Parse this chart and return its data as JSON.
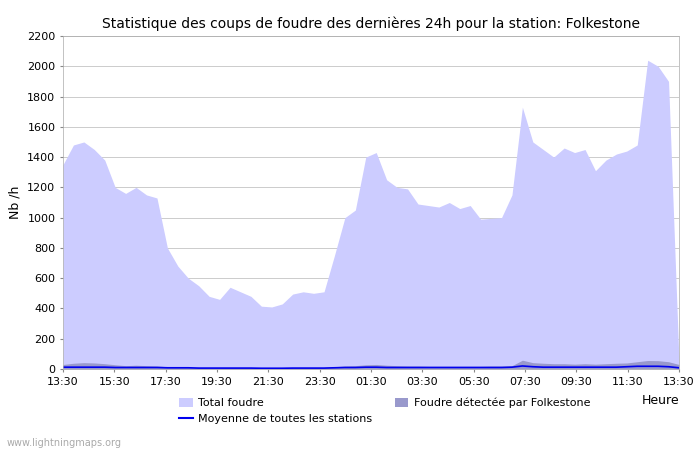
{
  "title": "Statistique des coups de foudre des dernières 24h pour la station: Folkestone",
  "ylabel": "Nb /h",
  "xlabel": "Heure",
  "ylim": [
    0,
    2200
  ],
  "yticks": [
    0,
    200,
    400,
    600,
    800,
    1000,
    1200,
    1400,
    1600,
    1800,
    2000,
    2200
  ],
  "xtick_labels": [
    "13:30",
    "15:30",
    "17:30",
    "19:30",
    "21:30",
    "23:30",
    "01:30",
    "03:30",
    "05:30",
    "07:30",
    "09:30",
    "11:30",
    "13:30"
  ],
  "bg_color": "#ffffff",
  "plot_bg_color": "#ffffff",
  "grid_color": "#cccccc",
  "fill_total_color": "#ccccff",
  "fill_station_color": "#9999cc",
  "mean_line_color": "#0000ee",
  "watermark": "www.lightningmaps.org",
  "total_foudre": [
    1350,
    1480,
    1500,
    1450,
    1380,
    1200,
    1160,
    1200,
    1150,
    1130,
    800,
    680,
    600,
    550,
    480,
    460,
    540,
    510,
    480,
    415,
    410,
    430,
    495,
    510,
    500,
    510,
    750,
    1000,
    1050,
    1400,
    1430,
    1250,
    1200,
    1190,
    1090,
    1080,
    1070,
    1100,
    1060,
    1080,
    990,
    995,
    1000,
    1150,
    1730,
    1500,
    1450,
    1400,
    1460,
    1430,
    1450,
    1310,
    1380,
    1420,
    1440,
    1480,
    2040,
    2000,
    1900,
    50
  ],
  "station_foudre": [
    30,
    38,
    42,
    40,
    35,
    28,
    22,
    25,
    22,
    20,
    15,
    12,
    10,
    10,
    8,
    8,
    10,
    10,
    10,
    8,
    8,
    8,
    10,
    10,
    10,
    10,
    15,
    20,
    22,
    28,
    30,
    25,
    22,
    20,
    20,
    18,
    18,
    18,
    18,
    18,
    18,
    20,
    20,
    22,
    58,
    42,
    38,
    35,
    35,
    32,
    35,
    32,
    35,
    38,
    40,
    48,
    56,
    55,
    48,
    30
  ],
  "mean_line": [
    12,
    12,
    12,
    12,
    12,
    10,
    10,
    10,
    10,
    10,
    8,
    8,
    8,
    6,
    6,
    6,
    6,
    6,
    6,
    5,
    5,
    5,
    6,
    6,
    6,
    6,
    8,
    10,
    10,
    12,
    12,
    10,
    10,
    10,
    10,
    10,
    10,
    10,
    10,
    10,
    10,
    10,
    10,
    12,
    20,
    15,
    12,
    12,
    12,
    12,
    12,
    12,
    12,
    12,
    15,
    18,
    18,
    18,
    15,
    8
  ],
  "legend_items": [
    {
      "type": "patch",
      "color": "#ccccff",
      "label": "Total foudre"
    },
    {
      "type": "line",
      "color": "#0000ee",
      "label": "Moyenne de toutes les stations"
    },
    {
      "type": "patch",
      "color": "#9999cc",
      "label": "Foudre détectée par Folkestone"
    }
  ]
}
